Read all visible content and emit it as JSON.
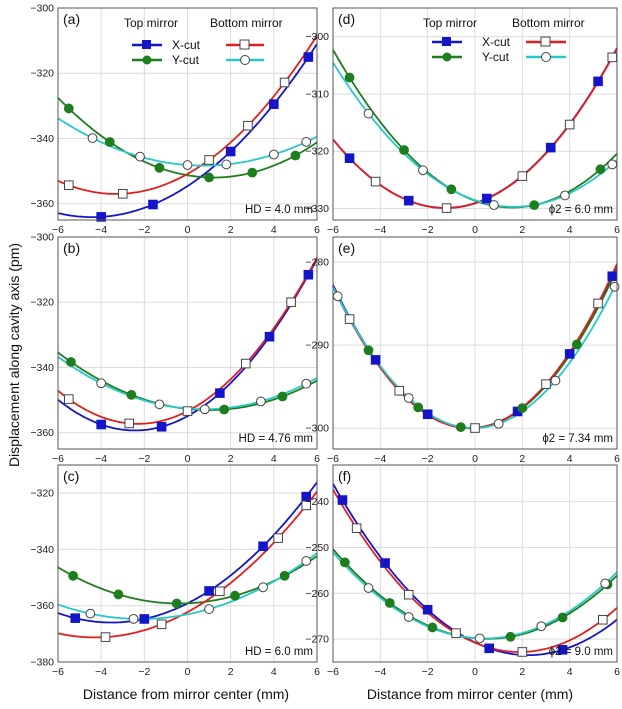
{
  "figure": {
    "ylabel": "Displacement along cavity axis (pm)",
    "xlabel_left": "Distance from mirror center (mm)",
    "xlabel_right": "Distance from mirror center (mm)",
    "legend": {
      "header_top": "Top mirror",
      "header_bottom": "Bottom mirror",
      "x_cut": "X-cut",
      "y_cut": "Y-cut"
    }
  },
  "colors": {
    "top_x": "#1515c8",
    "top_y": "#1e7d1e",
    "bottom_x": "#e02020",
    "bottom_y": "#28c8c8"
  },
  "chart_data": [
    {
      "panel": "(a)",
      "type": "line",
      "annotation": "HD = 4.0 mm",
      "xlim": [
        -6,
        6
      ],
      "ylim": [
        -365,
        -300
      ],
      "xticks": [
        -6,
        -4,
        -2,
        0,
        2,
        4,
        6
      ],
      "yticks": [
        -360,
        -340,
        -320,
        -300
      ],
      "series": [
        {
          "name": "Top mirror X-cut",
          "coeffs": [
            -354.6,
            4.32,
            0.49
          ],
          "markers": [
            -4,
            -1.6,
            2,
            4,
            5.6
          ]
        },
        {
          "name": "Top mirror Y-cut",
          "coeffs": [
            -351.28,
            -1.14,
            0.47
          ],
          "markers": [
            -5.5,
            -3.6,
            -1.3,
            1,
            3,
            5
          ]
        },
        {
          "name": "Bottom mirror X-cut",
          "coeffs": [
            -350.87,
            3.71,
            0.56
          ],
          "markers": [
            -5.5,
            -3,
            1,
            2.8,
            4.5
          ]
        },
        {
          "name": "Bottom mirror Y-cut",
          "coeffs": [
            -348.15,
            -0.47,
            0.32
          ],
          "markers": [
            -4.4,
            -2.2,
            0,
            1.8,
            4,
            5.5
          ]
        }
      ]
    },
    {
      "panel": "(b)",
      "type": "line",
      "annotation": "HD = 4.76 mm",
      "xlim": [
        -6,
        6
      ],
      "ylim": [
        -365,
        -300
      ],
      "xticks": [
        -6,
        -4,
        -2,
        0,
        2,
        4,
        6
      ],
      "yticks": [
        -360,
        -340,
        -320,
        -300
      ],
      "series": [
        {
          "name": "Top mirror X-cut",
          "coeffs": [
            -354.93,
            3.6,
            0.74
          ],
          "markers": [
            -4,
            -1.2,
            1.5,
            3.8,
            5.6
          ]
        },
        {
          "name": "Top mirror Y-cut",
          "coeffs": [
            -352.7,
            -0.72,
            0.36
          ],
          "markers": [
            -5.4,
            -2.6,
            1.7,
            4.4
          ]
        },
        {
          "name": "Bottom mirror X-cut",
          "coeffs": [
            -353.38,
            3.4,
            0.74
          ],
          "markers": [
            -5.5,
            -2.7,
            0,
            2.7,
            4.8
          ]
        },
        {
          "name": "Bottom mirror Y-cut",
          "coeffs": [
            -352.6,
            -0.54,
            0.35
          ],
          "markers": [
            -4,
            -1.3,
            0.8,
            3.4,
            5.5
          ]
        }
      ]
    },
    {
      "panel": "(c)",
      "type": "line",
      "annotation": "HD = 6.0 mm",
      "xlim": [
        -6,
        6
      ],
      "ylim": [
        -380,
        -310
      ],
      "xticks": [
        -6,
        -4,
        -2,
        0,
        2,
        4,
        6
      ],
      "yticks": [
        -380,
        -360,
        -340,
        -320
      ],
      "series": [
        {
          "name": "Top mirror X-cut",
          "coeffs": [
            -359.17,
            3.87,
            0.55
          ],
          "markers": [
            -5.2,
            -2,
            1,
            3.5,
            5.5
          ]
        },
        {
          "name": "Top mirror Y-cut",
          "coeffs": [
            -359.14,
            0.33,
            0.41
          ],
          "markers": [
            -5.3,
            -3.2,
            -0.5,
            2.2,
            4.5
          ]
        },
        {
          "name": "Bottom mirror X-cut",
          "coeffs": [
            -362.27,
            4.2,
            0.49
          ],
          "markers": [
            -3.8,
            -1.2,
            1.5,
            4.2,
            5.5
          ]
        },
        {
          "name": "Bottom mirror Y-cut",
          "coeffs": [
            -363.06,
            1.52,
            0.35
          ],
          "markers": [
            -4.5,
            -2.5,
            1,
            3.5,
            5.5
          ]
        }
      ]
    },
    {
      "panel": "(d)",
      "type": "line",
      "annotation": "ϕ2 = 6.0 mm",
      "xlim": [
        -6,
        6
      ],
      "ylim": [
        -332,
        -295
      ],
      "xticks": [
        -6,
        -4,
        -2,
        0,
        2,
        4,
        6
      ],
      "yticks": [
        -330,
        -320,
        -310,
        -300
      ],
      "series": [
        {
          "name": "Top mirror X-cut",
          "coeffs": [
            -329.05,
            1.33,
            0.53
          ],
          "markers": [
            -5.3,
            -2.8,
            0.5,
            3.2,
            5.2
          ]
        },
        {
          "name": "Top mirror Y-cut",
          "coeffs": [
            -328.63,
            -1.51,
            0.48
          ],
          "markers": [
            -5.3,
            -3,
            -1,
            2.5,
            5.3
          ]
        },
        {
          "name": "Bottom mirror X-cut",
          "coeffs": [
            -329.1,
            1.32,
            0.53
          ],
          "markers": [
            -4.2,
            -1.2,
            2,
            4,
            5.8
          ]
        },
        {
          "name": "Bottom mirror Y-cut",
          "coeffs": [
            -328.53,
            -1.42,
            0.43
          ],
          "markers": [
            -4.5,
            -2.2,
            0.8,
            3.8,
            5.8
          ]
        }
      ]
    },
    {
      "panel": "(e)",
      "type": "line",
      "annotation": "ϕ2 = 7.34 mm",
      "xlim": [
        -6,
        6
      ],
      "ylim": [
        -302.5,
        -277
      ],
      "xticks": [
        -6,
        -4,
        -2,
        0,
        2,
        4,
        6
      ],
      "yticks": [
        -300,
        -290,
        -280
      ],
      "series": [
        {
          "name": "Top mirror X-cut",
          "coeffs": [
            -299.98,
            0.19,
            0.51
          ],
          "markers": [
            -4.2,
            -2,
            1.8,
            4,
            5.8
          ]
        },
        {
          "name": "Top mirror Y-cut",
          "coeffs": [
            -299.94,
            0.18,
            0.5
          ],
          "markers": [
            -4.5,
            -2.4,
            -0.6,
            2,
            4.3
          ]
        },
        {
          "name": "Bottom mirror X-cut",
          "coeffs": [
            -299.98,
            0.23,
            0.51
          ],
          "markers": [
            -5.3,
            -3.2,
            0,
            3,
            5.2
          ]
        },
        {
          "name": "Bottom mirror Y-cut",
          "coeffs": [
            -299.99,
            0.05,
            0.48
          ],
          "markers": [
            -5.8,
            -2.8,
            1,
            3.4,
            5.9
          ]
        }
      ]
    },
    {
      "panel": "(f)",
      "type": "line",
      "annotation": "ϕ2 = 9.0 mm",
      "xlim": [
        -6,
        6
      ],
      "ylim": [
        -275,
        -232
      ],
      "xticks": [
        -6,
        -4,
        -2,
        0,
        2,
        4,
        6
      ],
      "yticks": [
        -270,
        -260,
        -250,
        -240
      ],
      "series": [
        {
          "name": "Top mirror X-cut",
          "coeffs": [
            -270.73,
            -2.47,
            0.55
          ],
          "markers": [
            -5.6,
            -3.8,
            -2,
            0.6,
            3.7
          ]
        },
        {
          "name": "Top mirror Y-cut",
          "coeffs": [
            -269.81,
            -0.48,
            0.46
          ],
          "markers": [
            -5.5,
            -3.6,
            -1.8,
            1.5,
            3.7,
            5.6
          ]
        },
        {
          "name": "Bottom mirror X-cut",
          "coeffs": [
            -270.79,
            -2.15,
            0.57
          ],
          "markers": [
            -5,
            -2.8,
            -0.8,
            2,
            5.4
          ]
        },
        {
          "name": "Bottom mirror Y-cut",
          "coeffs": [
            -269.79,
            -0.36,
            0.46
          ],
          "markers": [
            -4.5,
            -2.8,
            0.2,
            2.8,
            5.5
          ]
        }
      ]
    }
  ]
}
